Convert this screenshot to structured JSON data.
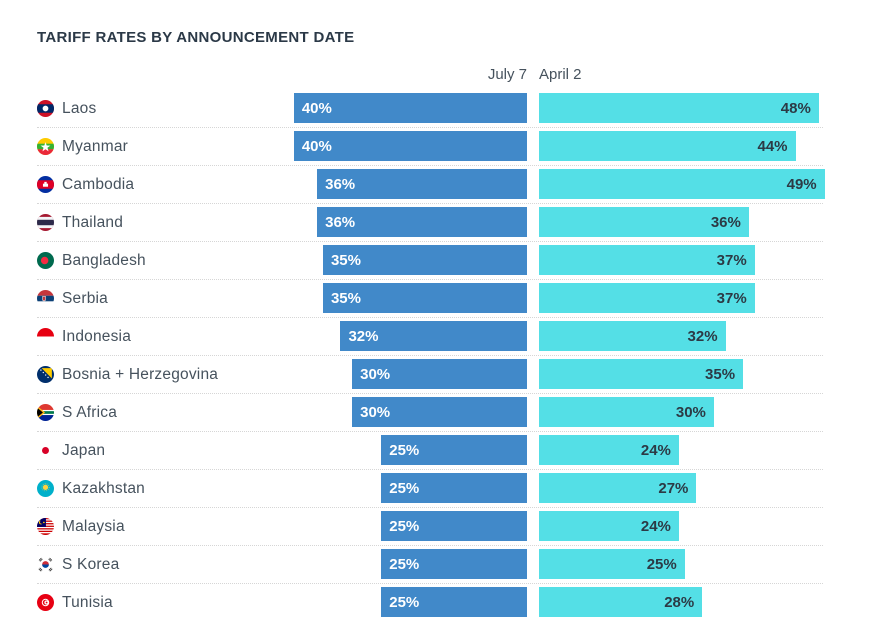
{
  "title": "TARIFF RATES BY ANNOUNCEMENT DATE",
  "colors": {
    "july7_bar": "#4189C9",
    "april2_bar": "#54DFE6",
    "title_text": "#2B3947",
    "label_text": "#46525D",
    "separator": "#D6D6D6",
    "value_text_on_blue": "#FFFFFF",
    "value_text_on_cyan": "#2C3A45"
  },
  "flags": [
    "laos",
    "myanmar",
    "cambodia",
    "thailand",
    "bangladesh",
    "serbia",
    "indonesia",
    "bosnia-herzegovina",
    "s-africa",
    "japan",
    "kazakhstan",
    "malaysia",
    "s-korea",
    "tunisia"
  ],
  "chart_data": {
    "type": "bar",
    "orientation": "horizontal",
    "title": "TARIFF RATES BY ANNOUNCEMENT DATE",
    "categories": [
      "Laos",
      "Myanmar",
      "Cambodia",
      "Thailand",
      "Bangladesh",
      "Serbia",
      "Indonesia",
      "Bosnia + Herzegovina",
      "S Africa",
      "Japan",
      "Kazakhstan",
      "Malaysia",
      "S Korea",
      "Tunisia"
    ],
    "series": [
      {
        "name": "July 7",
        "values": [
          40,
          40,
          36,
          36,
          35,
          35,
          32,
          30,
          30,
          25,
          25,
          25,
          25,
          25
        ]
      },
      {
        "name": "April 2",
        "values": [
          48,
          44,
          49,
          36,
          37,
          37,
          32,
          35,
          30,
          24,
          27,
          24,
          25,
          28
        ]
      }
    ],
    "unit": "%",
    "value_labels": true,
    "xlim": [
      0,
      50
    ],
    "legend_position": "top",
    "grid": "dotted-row-separators"
  }
}
